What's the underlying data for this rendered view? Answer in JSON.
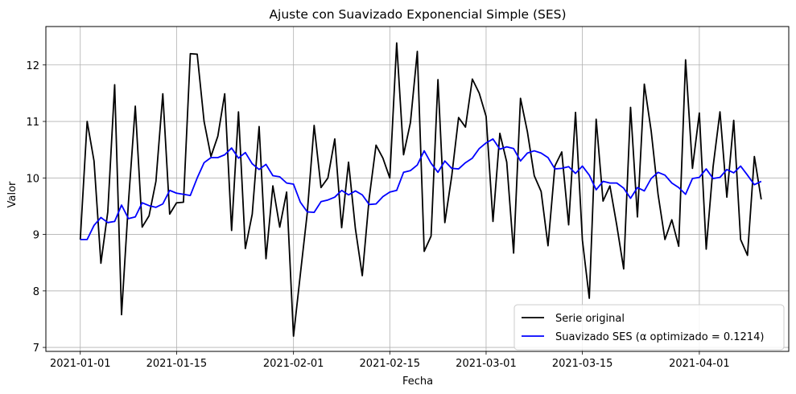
{
  "chart_data": {
    "type": "line",
    "title": "Ajuste con Suavizado Exponencial Simple (SES)",
    "xlabel": "Fecha",
    "ylabel": "Valor",
    "x_start": "2021-01-01",
    "x_end": "2021-04-10",
    "x_step": "1 day",
    "xlim": [
      "2020-12-27",
      "2021-04-14"
    ],
    "ylim": [
      6.93,
      12.68
    ],
    "x_ticks": [
      "2021-01-01",
      "2021-01-15",
      "2021-02-01",
      "2021-02-15",
      "2021-03-01",
      "2021-03-15",
      "2021-04-01"
    ],
    "y_ticks": [
      7,
      8,
      9,
      10,
      11,
      12
    ],
    "grid": true,
    "legend_position": "lower right",
    "series": [
      {
        "name": "Serie original",
        "color": "#000000",
        "values": [
          8.91,
          11.0,
          10.3,
          8.49,
          9.4,
          11.65,
          7.58,
          9.56,
          11.27,
          9.13,
          9.33,
          9.94,
          11.49,
          9.36,
          9.56,
          9.57,
          12.2,
          12.19,
          11.0,
          10.38,
          10.74,
          11.49,
          9.07,
          11.17,
          8.75,
          9.36,
          10.91,
          8.57,
          9.86,
          9.13,
          9.75,
          7.2,
          8.3,
          9.38,
          10.93,
          9.83,
          10.0,
          10.69,
          9.12,
          10.28,
          9.1,
          8.27,
          9.64,
          10.58,
          10.35,
          10.0,
          12.39,
          10.41,
          10.98,
          12.24,
          8.7,
          8.97,
          11.74,
          9.21,
          10.03,
          11.07,
          10.9,
          11.75,
          11.5,
          11.09,
          9.23,
          10.79,
          10.28,
          8.67,
          11.41,
          10.82,
          10.04,
          9.76,
          8.8,
          10.21,
          10.46,
          9.17,
          11.16,
          8.9,
          7.87,
          11.04,
          9.59,
          9.86,
          9.16,
          8.39,
          11.25,
          9.31,
          11.66,
          10.83,
          9.71,
          8.91,
          9.26,
          8.79,
          12.09,
          10.17,
          11.15,
          8.74,
          10.2,
          11.17,
          9.66,
          11.02,
          8.91,
          8.63,
          10.38,
          9.62
        ]
      },
      {
        "name": "Suavizado SES (α optimizado = 0.1214)",
        "color": "#0000ff",
        "values": [
          8.91,
          8.91,
          9.16,
          9.3,
          9.21,
          9.23,
          9.52,
          9.28,
          9.31,
          9.56,
          9.51,
          9.48,
          9.54,
          9.78,
          9.73,
          9.71,
          9.69,
          10.0,
          10.27,
          10.36,
          10.36,
          10.41,
          10.53,
          10.35,
          10.45,
          10.25,
          10.15,
          10.24,
          10.04,
          10.02,
          9.91,
          9.89,
          9.57,
          9.4,
          9.39,
          9.58,
          9.61,
          9.66,
          9.78,
          9.7,
          9.77,
          9.7,
          9.53,
          9.54,
          9.67,
          9.75,
          9.78,
          10.1,
          10.13,
          10.23,
          10.48,
          10.26,
          10.1,
          10.3,
          10.17,
          10.16,
          10.27,
          10.35,
          10.52,
          10.62,
          10.69,
          10.51,
          10.55,
          10.52,
          10.3,
          10.44,
          10.48,
          10.44,
          10.36,
          10.16,
          10.17,
          10.2,
          10.08,
          10.21,
          10.05,
          9.79,
          9.94,
          9.91,
          9.91,
          9.82,
          9.64,
          9.83,
          9.77,
          9.99,
          10.1,
          10.05,
          9.91,
          9.83,
          9.71,
          9.99,
          10.01,
          10.16,
          9.99,
          10.01,
          10.15,
          10.09,
          10.21,
          10.05,
          9.88,
          9.94
        ]
      }
    ]
  }
}
